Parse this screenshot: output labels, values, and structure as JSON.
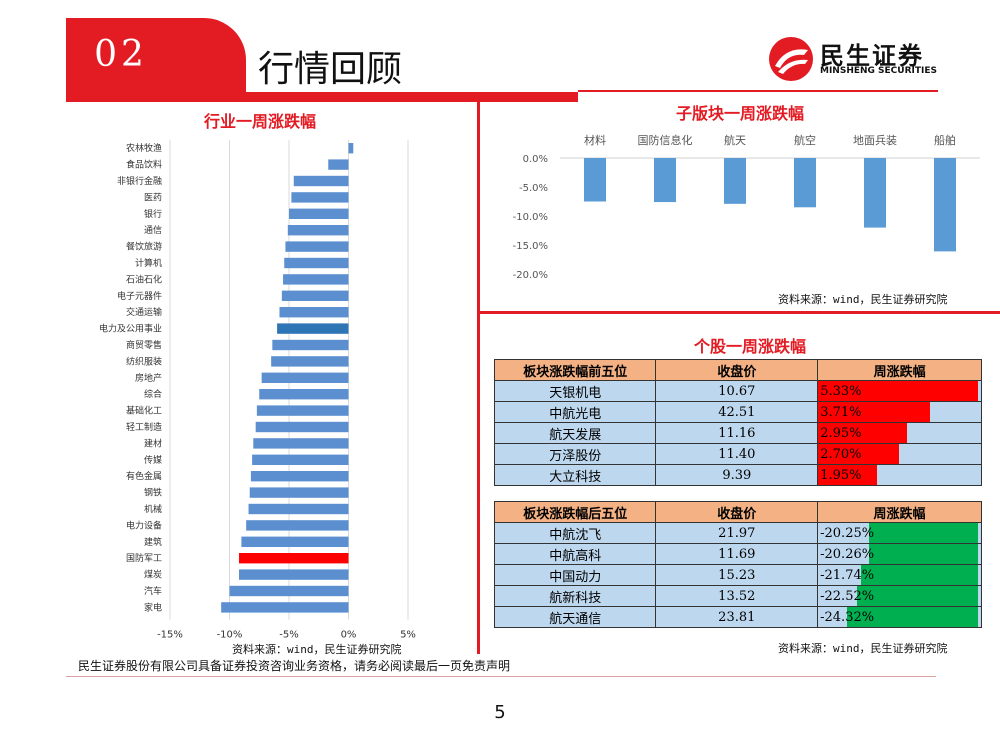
{
  "header": {
    "section_number": "02",
    "section_title": "行情回顾",
    "logo_cn": "民生证券",
    "logo_en": "MINSHENG SECURITIES"
  },
  "chart_data": [
    {
      "type": "bar",
      "orientation": "horizontal",
      "title": "行业一周涨跌幅",
      "categories": [
        "农林牧渔",
        "食品饮料",
        "非银行金融",
        "医药",
        "银行",
        "通信",
        "餐饮旅游",
        "计算机",
        "石油石化",
        "电子元器件",
        "交通运输",
        "电力及公用事业",
        "商贸零售",
        "纺织服装",
        "房地产",
        "综合",
        "基础化工",
        "轻工制造",
        "建材",
        "传媒",
        "有色金属",
        "钢铁",
        "机械",
        "电力设备",
        "建筑",
        "国防军工",
        "煤炭",
        "汽车",
        "家电"
      ],
      "values": [
        0.4,
        -1.7,
        -4.6,
        -4.8,
        -5.0,
        -5.1,
        -5.3,
        -5.4,
        -5.5,
        -5.6,
        -5.8,
        -6.0,
        -6.4,
        -6.5,
        -7.3,
        -7.5,
        -7.7,
        -7.8,
        -8.0,
        -8.1,
        -8.2,
        -8.3,
        -8.4,
        -8.6,
        -9.0,
        -9.2,
        -9.2,
        -10.0,
        -10.7
      ],
      "highlight": {
        "国防军工": "#ff0000",
        "电力及公用事业": "#2e75b6"
      },
      "xlim": [
        -15,
        5
      ],
      "xticks": [
        "-15%",
        "-10%",
        "-5%",
        "0%",
        "5%"
      ],
      "bar_color": "#5b8fd0",
      "source": "资料来源：wind，民生证券研究院"
    },
    {
      "type": "bar",
      "title": "子版块一周涨跌幅",
      "categories": [
        "材料",
        "国防信息化",
        "航天",
        "航空",
        "地面兵装",
        "船舶"
      ],
      "values": [
        -7.5,
        -7.6,
        -7.9,
        -8.5,
        -12.0,
        -16.1
      ],
      "ylim": [
        -20,
        0
      ],
      "yticks": [
        "0.0%",
        "-5.0%",
        "-10.0%",
        "-15.0%",
        "-20.0%"
      ],
      "bar_color": "#5b9bd5",
      "source": "资料来源：wind，民生证券研究院"
    },
    {
      "type": "table",
      "title": "个股一周涨跌幅",
      "top": {
        "columns": [
          "板块涨跌幅前五位",
          "收盘价",
          "周涨跌幅"
        ],
        "rows": [
          {
            "name": "天银机电",
            "price": "10.67",
            "pct": "5.33%",
            "value": 5.33
          },
          {
            "name": "中航光电",
            "price": "42.51",
            "pct": "3.71%",
            "value": 3.71
          },
          {
            "name": "航天发展",
            "price": "11.16",
            "pct": "2.95%",
            "value": 2.95
          },
          {
            "name": "万泽股份",
            "price": "11.40",
            "pct": "2.70%",
            "value": 2.7
          },
          {
            "name": "大立科技",
            "price": "9.39",
            "pct": "1.95%",
            "value": 1.95
          }
        ]
      },
      "bottom": {
        "columns": [
          "板块涨跌幅后五位",
          "收盘价",
          "周涨跌幅"
        ],
        "rows": [
          {
            "name": "中航沈飞",
            "price": "21.97",
            "pct": "-20.25%",
            "value": -20.25
          },
          {
            "name": "中航高科",
            "price": "11.69",
            "pct": "-20.26%",
            "value": -20.26
          },
          {
            "name": "中国动力",
            "price": "15.23",
            "pct": "-21.74%",
            "value": -21.74
          },
          {
            "name": "航新科技",
            "price": "13.52",
            "pct": "-22.52%",
            "value": -22.52
          },
          {
            "name": "航天通信",
            "price": "23.81",
            "pct": "-24.32%",
            "value": -24.32
          }
        ]
      },
      "positive_color": "#ff0000",
      "negative_color": "#00b050",
      "source": "资料来源：wind，民生证券研究院"
    }
  ],
  "footer": {
    "disclaimer": "民生证券股份有限公司具备证券投资咨询业务资格，请务必阅读最后一页免责声明",
    "page": "5"
  }
}
